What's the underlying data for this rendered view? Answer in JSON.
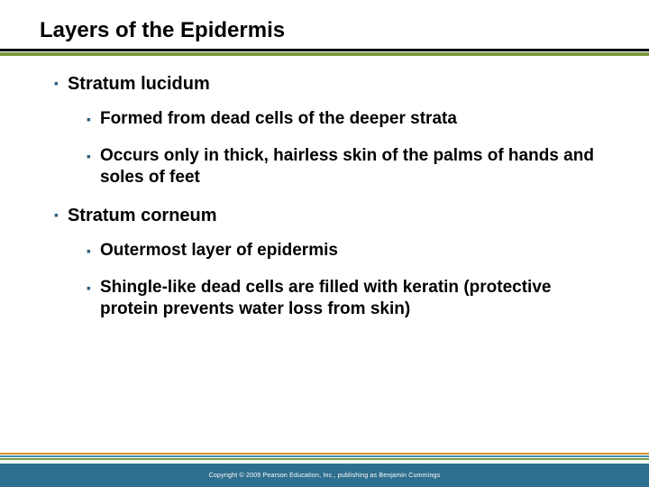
{
  "title": "Layers of the Epidermis",
  "colors": {
    "bullet": "#2f5f7f",
    "underlineTop": "#000000",
    "underlineBottom": "#7a9a3b",
    "footerBar": "#2f6f8f",
    "stripeTop": "#d98c2b",
    "stripeMid": "#3b8fb0",
    "stripeBot": "#7a9a3b"
  },
  "items": [
    {
      "text": "Stratum lucidum",
      "children": [
        {
          "text": "Formed from dead cells of the deeper strata"
        },
        {
          "text": "Occurs only in thick, hairless skin of the palms of hands and soles of feet"
        }
      ]
    },
    {
      "text": "Stratum corneum",
      "children": [
        {
          "text": "Outermost layer of epidermis"
        },
        {
          "text": "Shingle-like dead cells are filled with keratin (protective protein prevents water loss from skin)"
        }
      ]
    }
  ],
  "copyright": "Copyright © 2009 Pearson Education, Inc., publishing as Benjamin Cummings"
}
